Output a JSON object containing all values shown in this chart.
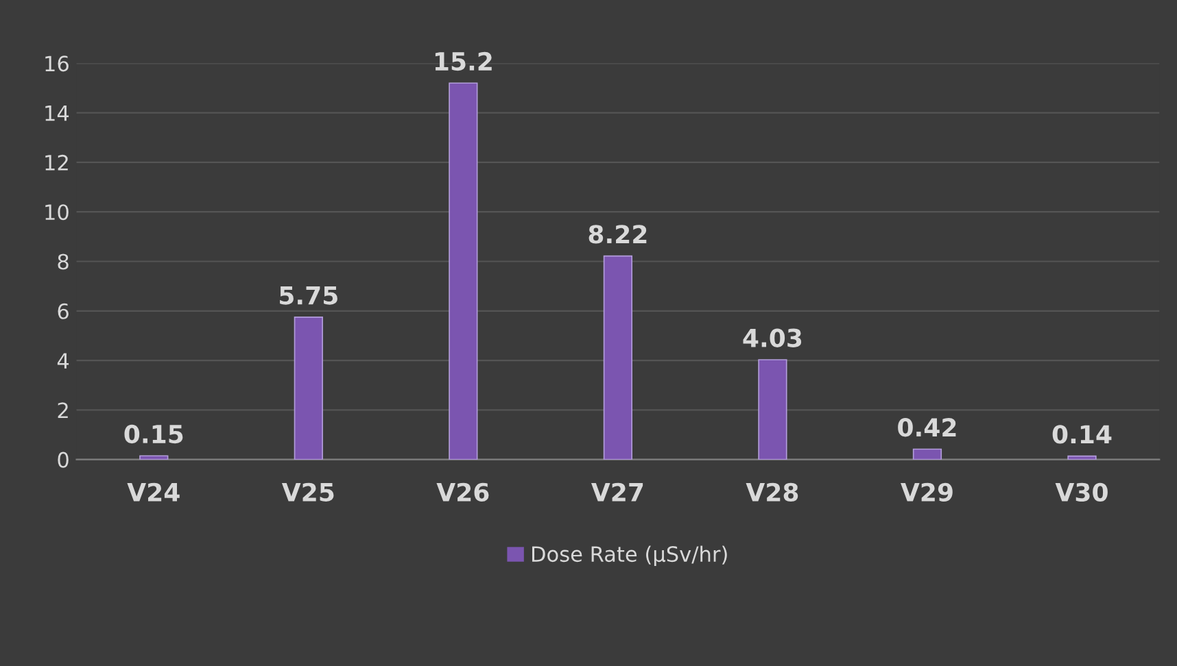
{
  "chart_data": {
    "type": "bar",
    "categories": [
      "V24",
      "V25",
      "V26",
      "V27",
      "V28",
      "V29",
      "V30"
    ],
    "series": [
      {
        "name": "Dose Rate (µSv/hr)",
        "color": "#7b55b0",
        "values": [
          0.15,
          5.75,
          15.2,
          8.22,
          4.03,
          0.42,
          0.14
        ]
      }
    ],
    "ylim": [
      0,
      16
    ],
    "yticks": [
      0,
      2,
      4,
      6,
      8,
      10,
      12,
      14,
      16
    ],
    "grid": "y",
    "legend": "bottom",
    "data_labels": true
  }
}
